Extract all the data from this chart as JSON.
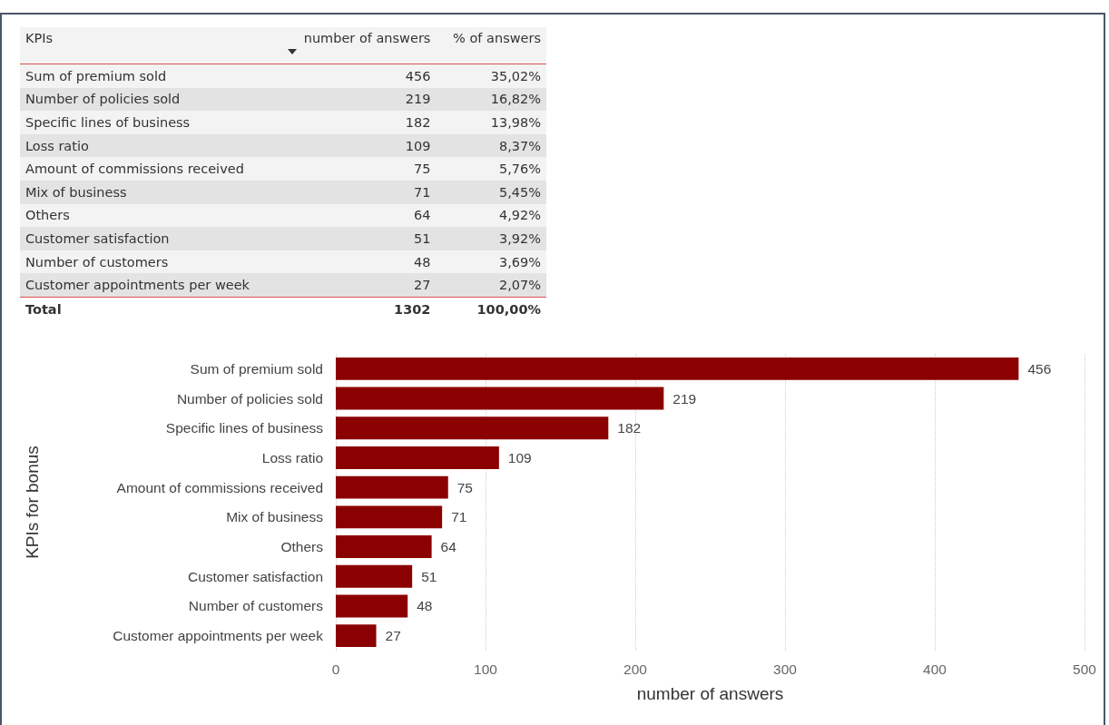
{
  "chart_data": [
    {
      "type": "other",
      "xlabel": "KPIs",
      "categories": [
        "Sum of premium sold",
        "Number of policies sold",
        "Specific lines of business",
        "Loss ratio",
        "Amount of commissions received",
        "Mix of business",
        "Others",
        "Customer satisfaction",
        "Number of customers",
        "Customer appointments per week"
      ],
      "series": [
        {
          "name": "number of answers",
          "colors": [
            "#f3f3f3",
            "#e3e3e3",
            "#f3f3f3",
            "#e3e3e3",
            "#f3f3f3",
            "#e3e3e3",
            "#f3f3f3",
            "#e3e3e3",
            "#f3f3f3",
            "#e3e3e3"
          ],
          "values": [
            456,
            219,
            182,
            109,
            75,
            71,
            64,
            51,
            48,
            27
          ],
          "value_labels": [
            "456",
            "219",
            "182",
            "109",
            "75",
            "71",
            "64",
            "51",
            "48",
            "27"
          ]
        },
        {
          "name": "% of answers",
          "colors": [
            "#f3f3f3",
            "#e3e3e3",
            "#f3f3f3",
            "#e3e3e3",
            "#f3f3f3",
            "#e3e3e3",
            "#f3f3f3",
            "#e3e3e3",
            "#f3f3f3",
            "#e3e3e3"
          ],
          "values": [
            35.02,
            16.82,
            13.98,
            8.37,
            5.76,
            5.45,
            4.92,
            3.92,
            3.69,
            2.07
          ],
          "value_labels": [
            "35,02%",
            "16,82%",
            "13,98%",
            "8,37%",
            "5,76%",
            "5,45%",
            "4,92%",
            "3,92%",
            "3,69%",
            "2,07%"
          ]
        }
      ],
      "annotations": [
        "Total"
      ],
      "totals": [
        "1302",
        "100,00%"
      ]
    },
    {
      "type": "bar",
      "orientation": "horizontal",
      "xlabel": "number of answers",
      "ylabel": "KPIs for bonus",
      "categories": [
        "Sum of premium sold",
        "Number of policies sold",
        "Specific lines of business",
        "Loss ratio",
        "Amount of commissions received",
        "Mix of business",
        "Others",
        "Customer satisfaction",
        "Number of customers",
        "Customer appointments per week"
      ],
      "values": [
        456,
        219,
        182,
        109,
        75,
        71,
        64,
        51,
        48,
        27
      ],
      "color": "#8b0000",
      "xlim": [
        0,
        500
      ],
      "xticks": [
        0,
        100,
        200,
        300,
        400,
        500
      ],
      "grid": "x",
      "data_labels": true
    }
  ]
}
